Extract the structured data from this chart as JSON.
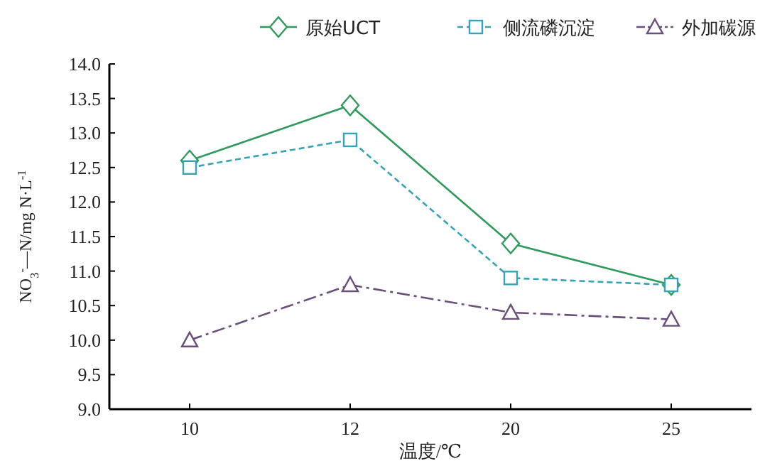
{
  "chart_data": {
    "type": "line",
    "xlabel": "温度/℃",
    "ylabel": "NO$_{3}$$^{-}$—N/mg N·L$^{-1}$",
    "categories": [
      "10",
      "12",
      "20",
      "25"
    ],
    "series": [
      {
        "name": "原始UCT",
        "color": "#2e9a5c",
        "values": [
          12.6,
          13.4,
          11.4,
          10.8
        ],
        "marker": "diamond",
        "line_style": "solid"
      },
      {
        "name": "侧流磷沉淀",
        "color": "#36a3b8",
        "values": [
          12.5,
          12.9,
          10.9,
          10.8
        ],
        "marker": "square",
        "line_style": "dashed"
      },
      {
        "name": "外加碳源",
        "color": "#6a4f7c",
        "values": [
          10.0,
          10.8,
          10.4,
          10.3
        ],
        "marker": "triangle",
        "line_style": "dashdot"
      }
    ],
    "ylim": [
      9,
      14
    ],
    "yticks": [
      {
        "value": 9,
        "label": "9.0"
      },
      {
        "value": 9.5,
        "label": "9.5"
      },
      {
        "value": 10,
        "label": "10.0"
      },
      {
        "value": 10.5,
        "label": "10.5"
      },
      {
        "value": 11,
        "label": "11.0"
      },
      {
        "value": 11.5,
        "label": "11.5"
      },
      {
        "value": 12,
        "label": "12.0"
      },
      {
        "value": 12.5,
        "label": "12.5"
      },
      {
        "value": 13,
        "label": "13.0"
      },
      {
        "value": 13.5,
        "label": "13.5"
      },
      {
        "value": 14,
        "label": "14.0"
      }
    ],
    "legend": "top",
    "grid": false
  }
}
